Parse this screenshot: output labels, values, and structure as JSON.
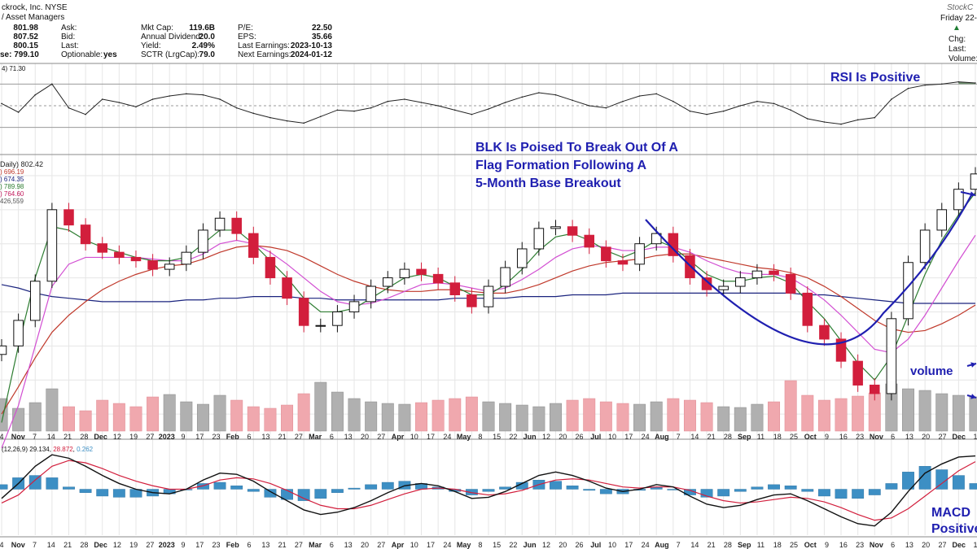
{
  "header": {
    "company": "ckrock, Inc. NYSE",
    "industry": "/ Asset Managers",
    "logo": "StockC",
    "date_text": "Friday 22-",
    "quote_rows": [
      {
        "v1": "801.98",
        "l2": "Ask:",
        "v2": "",
        "l3": "Mkt Cap:",
        "v3": "119.6B",
        "l4": "P/E:",
        "v4": "22.50"
      },
      {
        "v1": "807.52",
        "l2": "Bid:",
        "v2": "",
        "l3": "Annual Dividend:",
        "v3": "20.0",
        "l4": "EPS:",
        "v4": "35.66"
      },
      {
        "v1": "800.15",
        "l2": "Last:",
        "v2": "",
        "l3": "Yield:",
        "v3": "2.49%",
        "l4": "Last Earnings:",
        "v4": "2023-10-13"
      },
      {
        "v1": "se: 799.10",
        "l2": "Optionable:",
        "v2": "yes",
        "l3": "SCTR (LrgCap):",
        "v3": "79.0",
        "l4": "Next Earnings:",
        "v4": "2024-01-12"
      }
    ],
    "right_labels": [
      "Chg:",
      "Last:",
      "Volume:"
    ]
  },
  "panels": {
    "rsi_label": "4) 71.30",
    "price_labels": [
      {
        "text": "Daily) 802.42",
        "color": "#222222"
      },
      {
        "text": ") 696.19",
        "color": "#c0392b"
      },
      {
        "text": ") 674.35",
        "color": "#1a237e"
      },
      {
        "text": ") 789.98",
        "color": "#2e7d32"
      },
      {
        "text": ") 764.60",
        "color": "#c2185b"
      },
      {
        "text": "426,559",
        "color": "#555555"
      }
    ],
    "macd_label": {
      "prefix": "(12,26,9)",
      "v1": "29.134",
      "v2": "28.872",
      "v3": "0.262"
    }
  },
  "annotations": {
    "rsi": "RSI Is Positive",
    "flag": [
      "BLK Is Poised To Break Out Of A",
      "Flag Formation Following A",
      "5-Month Base Breakout"
    ],
    "volume": "volume",
    "macd": [
      "MACD",
      "Positive"
    ]
  },
  "chart_data": {
    "type": "line",
    "symbol": "BLK",
    "timeframe": "Daily",
    "period": "Nov 2022 – Dec 2023",
    "x_ticks": [
      "4",
      "Nov",
      "7",
      "14",
      "21",
      "28",
      "Dec",
      "12",
      "19",
      "27",
      "2023",
      "9",
      "17",
      "23",
      "Feb",
      "6",
      "13",
      "21",
      "27",
      "Mar",
      "6",
      "13",
      "20",
      "27",
      "Apr",
      "10",
      "17",
      "24",
      "May",
      "8",
      "15",
      "22",
      "Jun",
      "12",
      "20",
      "26",
      "Jul",
      "10",
      "17",
      "24",
      "Aug",
      "7",
      "14",
      "21",
      "28",
      "Sep",
      "11",
      "18",
      "25",
      "Oct",
      "9",
      "16",
      "23",
      "Nov",
      "6",
      "13",
      "20",
      "27",
      "Dec",
      "1"
    ],
    "series": [
      {
        "values": [
          700,
          715,
          738,
          780,
          771,
          760,
          755,
          752,
          750,
          745,
          748,
          755,
          768,
          775,
          766,
          752,
          740,
          728,
          712,
          712,
          720,
          726,
          735,
          740,
          745,
          742,
          737,
          730,
          723,
          735,
          746,
          757,
          769,
          770,
          765,
          758,
          750,
          748,
          760,
          766,
          753,
          740,
          733,
          735,
          740,
          744,
          742,
          731,
          712,
          704,
          691,
          677,
          672,
          716,
          749,
          768,
          780,
          792,
          801
        ]
      },
      {
        "values": [
          655,
          700,
          740,
          770,
          768,
          762,
          758,
          755,
          752,
          750,
          750,
          752,
          760,
          768,
          768,
          760,
          750,
          740,
          728,
          720,
          720,
          722,
          728,
          734,
          740,
          742,
          740,
          735,
          730,
          730,
          736,
          745,
          756,
          764,
          766,
          762,
          756,
          752,
          756,
          762,
          758,
          750,
          742,
          738,
          738,
          740,
          741,
          737,
          726,
          716,
          703,
          690,
          680,
          694,
          718,
          742,
          762,
          777,
          790
        ]
      },
      {
        "values": [
          640,
          665,
          700,
          735,
          748,
          752,
          752,
          752,
          752,
          751,
          750,
          750,
          754,
          760,
          762,
          760,
          755,
          748,
          740,
          732,
          726,
          724,
          725,
          728,
          732,
          736,
          737,
          736,
          734,
          732,
          734,
          739,
          745,
          752,
          757,
          759,
          758,
          756,
          756,
          758,
          758,
          755,
          750,
          746,
          743,
          742,
          742,
          740,
          734,
          727,
          718,
          708,
          698,
          696,
          704,
          718,
          734,
          750,
          765
        ]
      },
      {
        "values": [
          660,
          676,
          693,
          708,
          718,
          726,
          733,
          738,
          742,
          745,
          747,
          748,
          751,
          755,
          758,
          759,
          758,
          756,
          752,
          747,
          742,
          738,
          735,
          733,
          732,
          732,
          733,
          733,
          732,
          731,
          731,
          733,
          736,
          740,
          744,
          747,
          749,
          750,
          751,
          753,
          754,
          754,
          752,
          750,
          748,
          746,
          745,
          743,
          740,
          735,
          729,
          722,
          715,
          710,
          708,
          709,
          713,
          718,
          724
        ]
      },
      {
        "values": [
          736,
          734,
          731,
          729,
          728,
          727,
          726,
          726,
          726,
          726,
          726,
          727,
          727,
          728,
          728,
          729,
          729,
          729,
          728,
          728,
          727,
          727,
          727,
          727,
          727,
          727,
          727,
          728,
          728,
          728,
          728,
          729,
          729,
          729,
          730,
          730,
          730,
          731,
          731,
          731,
          731,
          731,
          731,
          731,
          731,
          731,
          731,
          731,
          730,
          730,
          729,
          728,
          727,
          726,
          725,
          725,
          725,
          725,
          725
        ]
      },
      {
        "values": [
          52,
          44,
          60,
          70,
          48,
          42,
          56,
          53,
          49,
          56,
          59,
          61,
          60,
          56,
          48,
          43,
          39,
          36,
          34,
          40,
          46,
          45,
          48,
          54,
          56,
          53,
          50,
          46,
          42,
          47,
          53,
          58,
          62,
          60,
          55,
          50,
          48,
          54,
          59,
          61,
          54,
          45,
          42,
          45,
          50,
          54,
          52,
          46,
          38,
          35,
          33,
          37,
          39,
          56,
          66,
          69,
          70,
          72,
          71
        ]
      },
      {
        "values": [
          -8,
          5,
          20,
          30,
          27,
          20,
          12,
          5,
          0,
          -3,
          -4,
          0,
          8,
          14,
          13,
          7,
          -2,
          -10,
          -18,
          -22,
          -20,
          -16,
          -10,
          -3,
          3,
          5,
          3,
          -2,
          -8,
          -7,
          -2,
          5,
          12,
          15,
          12,
          7,
          1,
          -2,
          0,
          4,
          2,
          -6,
          -13,
          -16,
          -14,
          -9,
          -5,
          -4,
          -10,
          -17,
          -24,
          -30,
          -32,
          -20,
          -2,
          14,
          22,
          28,
          29
        ]
      },
      {
        "values": [
          -12,
          -5,
          8,
          20,
          25,
          23,
          18,
          12,
          7,
          3,
          0,
          0,
          3,
          8,
          10,
          9,
          5,
          -1,
          -8,
          -14,
          -17,
          -17,
          -14,
          -9,
          -4,
          0,
          1,
          0,
          -3,
          -5,
          -4,
          -1,
          4,
          8,
          9,
          8,
          5,
          2,
          1,
          2,
          2,
          -1,
          -6,
          -10,
          -12,
          -11,
          -9,
          -7,
          -8,
          -11,
          -16,
          -22,
          -27,
          -25,
          -17,
          -6,
          5,
          16,
          24
        ]
      },
      {
        "values": [
          40,
          28,
          35,
          52,
          30,
          25,
          38,
          34,
          30,
          42,
          45,
          36,
          33,
          44,
          38,
          30,
          28,
          32,
          46,
          60,
          48,
          40,
          36,
          34,
          33,
          35,
          38,
          40,
          42,
          36,
          34,
          32,
          30,
          34,
          38,
          40,
          36,
          34,
          33,
          36,
          40,
          38,
          35,
          30,
          29,
          33,
          36,
          62,
          44,
          38,
          40,
          43,
          47,
          58,
          52,
          50,
          46,
          44,
          42
        ]
      }
    ],
    "price_ylim": [
      650,
      810
    ],
    "rsi_ylim": [
      20,
      80
    ],
    "macd_ylim": [
      -40,
      40
    ],
    "grid": true,
    "colors": {
      "up": "#111111",
      "down": "#d21e3c",
      "volume_up": "#b0b0b0",
      "volume_down": "#f0a8ae",
      "sma20": "#2e7d32",
      "ema": "#d24fd2",
      "sma50": "#c0392b",
      "sma200": "#1a237e",
      "macd": "#111111",
      "signal": "#d21e3c",
      "hist": "#3d8fc4",
      "annotation": "#1f1fb0"
    }
  }
}
